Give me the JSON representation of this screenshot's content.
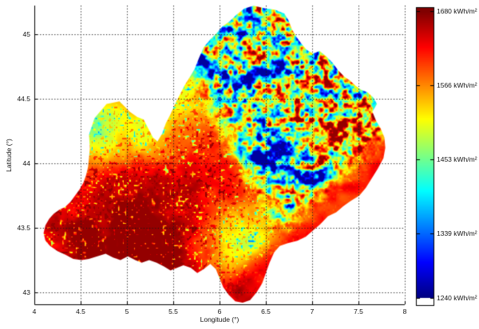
{
  "figure": {
    "background": "#ffffff",
    "text_color": "#111111"
  },
  "chart_data": {
    "type": "heatmap",
    "title": "",
    "xlabel": "Longitude (°)",
    "ylabel": "Latitude (°)",
    "xlim": [
      4,
      8
    ],
    "ylim": [
      42.9,
      45.22
    ],
    "grid": "dotted",
    "colormap": "jet",
    "xticks": [
      4,
      4.5,
      5,
      5.5,
      6,
      6.5,
      7,
      7.5,
      8
    ],
    "xtick_labels": [
      "4",
      "4.5",
      "5",
      "5.5",
      "6",
      "6.5",
      "7",
      "7.5",
      "8"
    ],
    "yticks": [
      43,
      43.5,
      44,
      44.5,
      45
    ],
    "ytick_labels": [
      "43",
      "43.5",
      "44",
      "44.5",
      "45"
    ],
    "colorbar": {
      "unit": "kWh/m²",
      "range": [
        1240,
        1680
      ],
      "ticks": [
        {
          "value": 1680,
          "label": "1680 kWh/m²"
        },
        {
          "value": 1566,
          "label": "1566 kWh/m²"
        },
        {
          "value": 1453,
          "label": "1453 kWh/m²"
        },
        {
          "value": 1339,
          "label": "1339 kWh/m²"
        },
        {
          "value": 1240,
          "label": "1240 kWh/m²"
        }
      ]
    },
    "region_outline_lonlat": [
      [
        4.59,
        44.22
      ],
      [
        4.65,
        44.35
      ],
      [
        4.78,
        44.46
      ],
      [
        4.92,
        44.48
      ],
      [
        5.03,
        44.4
      ],
      [
        5.11,
        44.36
      ],
      [
        5.18,
        44.34
      ],
      [
        5.23,
        44.27
      ],
      [
        5.28,
        44.2
      ],
      [
        5.33,
        44.17
      ],
      [
        5.38,
        44.23
      ],
      [
        5.42,
        44.31
      ],
      [
        5.47,
        44.38
      ],
      [
        5.52,
        44.46
      ],
      [
        5.57,
        44.53
      ],
      [
        5.62,
        44.6
      ],
      [
        5.68,
        44.67
      ],
      [
        5.73,
        44.73
      ],
      [
        5.78,
        44.82
      ],
      [
        5.83,
        44.9
      ],
      [
        5.9,
        44.96
      ],
      [
        5.97,
        45.01
      ],
      [
        6.03,
        45.06
      ],
      [
        6.11,
        45.1
      ],
      [
        6.18,
        45.15
      ],
      [
        6.27,
        45.2
      ],
      [
        6.37,
        45.22
      ],
      [
        6.49,
        45.2
      ],
      [
        6.6,
        45.19
      ],
      [
        6.7,
        45.16
      ],
      [
        6.75,
        45.1
      ],
      [
        6.78,
        45.04
      ],
      [
        6.83,
        44.98
      ],
      [
        6.88,
        44.93
      ],
      [
        6.94,
        44.88
      ],
      [
        7.01,
        44.85
      ],
      [
        7.08,
        44.87
      ],
      [
        7.15,
        44.83
      ],
      [
        7.22,
        44.78
      ],
      [
        7.28,
        44.72
      ],
      [
        7.35,
        44.67
      ],
      [
        7.41,
        44.64
      ],
      [
        7.47,
        44.6
      ],
      [
        7.53,
        44.57
      ],
      [
        7.6,
        44.55
      ],
      [
        7.66,
        44.51
      ],
      [
        7.7,
        44.46
      ],
      [
        7.65,
        44.4
      ],
      [
        7.69,
        44.33
      ],
      [
        7.74,
        44.27
      ],
      [
        7.78,
        44.2
      ],
      [
        7.79,
        44.12
      ],
      [
        7.77,
        44.04
      ],
      [
        7.71,
        43.96
      ],
      [
        7.65,
        43.89
      ],
      [
        7.58,
        43.81
      ],
      [
        7.51,
        43.75
      ],
      [
        7.42,
        43.71
      ],
      [
        7.34,
        43.67
      ],
      [
        7.26,
        43.62
      ],
      [
        7.17,
        43.59
      ],
      [
        7.09,
        43.53
      ],
      [
        7.01,
        43.48
      ],
      [
        6.93,
        43.43
      ],
      [
        6.84,
        43.4
      ],
      [
        6.73,
        43.38
      ],
      [
        6.65,
        43.36
      ],
      [
        6.59,
        43.31
      ],
      [
        6.54,
        43.23
      ],
      [
        6.5,
        43.15
      ],
      [
        6.46,
        43.07
      ],
      [
        6.4,
        43.0
      ],
      [
        6.33,
        42.94
      ],
      [
        6.25,
        42.92
      ],
      [
        6.17,
        42.93
      ],
      [
        6.1,
        42.98
      ],
      [
        6.04,
        43.04
      ],
      [
        6.0,
        43.11
      ],
      [
        5.96,
        43.18
      ],
      [
        5.9,
        43.22
      ],
      [
        5.83,
        43.18
      ],
      [
        5.76,
        43.15
      ],
      [
        5.69,
        43.19
      ],
      [
        5.61,
        43.21
      ],
      [
        5.54,
        43.19
      ],
      [
        5.47,
        43.17
      ],
      [
        5.4,
        43.2
      ],
      [
        5.32,
        43.23
      ],
      [
        5.24,
        43.25
      ],
      [
        5.16,
        43.23
      ],
      [
        5.09,
        43.25
      ],
      [
        5.01,
        43.28
      ],
      [
        4.93,
        43.25
      ],
      [
        4.85,
        43.27
      ],
      [
        4.77,
        43.3
      ],
      [
        4.68,
        43.28
      ],
      [
        4.59,
        43.26
      ],
      [
        4.51,
        43.25
      ],
      [
        4.42,
        43.26
      ],
      [
        4.34,
        43.29
      ],
      [
        4.25,
        43.32
      ],
      [
        4.17,
        43.36
      ],
      [
        4.12,
        43.4
      ],
      [
        4.1,
        43.46
      ],
      [
        4.12,
        43.52
      ],
      [
        4.16,
        43.57
      ],
      [
        4.21,
        43.61
      ],
      [
        4.27,
        43.64
      ],
      [
        4.33,
        43.66
      ],
      [
        4.39,
        43.7
      ],
      [
        4.44,
        43.75
      ],
      [
        4.49,
        43.8
      ],
      [
        4.53,
        43.85
      ],
      [
        4.56,
        43.91
      ],
      [
        4.58,
        43.97
      ],
      [
        4.59,
        44.04
      ],
      [
        4.6,
        44.12
      ]
    ]
  }
}
